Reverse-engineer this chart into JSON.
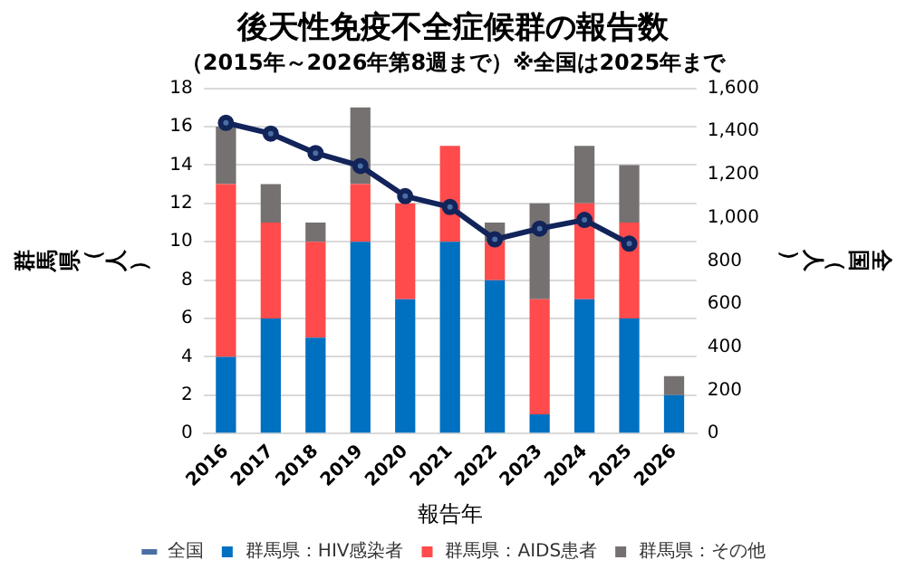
{
  "chart_data": {
    "type": "bar",
    "title": "後天性免疫不全症候群の報告数",
    "subtitle": "（2015年～2026年第8週まで）※全国は2025年まで",
    "xlabel": "報告年",
    "ylabel": "群馬県（人）",
    "y2label": "全国（人）",
    "categories": [
      "2016",
      "2017",
      "2018",
      "2019",
      "2020",
      "2021",
      "2022",
      "2023",
      "2024",
      "2025",
      "2026"
    ],
    "stacked": true,
    "series": [
      {
        "name": "群馬県：HIV感染者",
        "color": "#0070c0",
        "values": [
          4,
          6,
          5,
          10,
          7,
          10,
          8,
          1,
          7,
          6,
          2
        ]
      },
      {
        "name": "群馬県：AIDS患者",
        "color": "#ff4b4b",
        "values": [
          9,
          5,
          5,
          3,
          5,
          5,
          2,
          6,
          5,
          5,
          0
        ]
      },
      {
        "name": "群馬県：その他",
        "color": "#767171",
        "values": [
          3,
          2,
          1,
          4,
          0,
          0,
          1,
          5,
          3,
          3,
          1
        ]
      },
      {
        "name": "全国",
        "type": "line",
        "axis": "y2",
        "color": "#12245a",
        "marker": "circle",
        "values": [
          1440,
          1390,
          1300,
          1240,
          1100,
          1050,
          900,
          950,
          990,
          880,
          null
        ]
      }
    ],
    "ylim": [
      0,
      18
    ],
    "yticks": [
      0,
      2,
      4,
      6,
      8,
      10,
      12,
      14,
      16,
      18
    ],
    "y2lim": [
      0,
      1600
    ],
    "y2ticks": [
      {
        "value": 0,
        "label": "0"
      },
      {
        "value": 200,
        "label": "200"
      },
      {
        "value": 400,
        "label": "400"
      },
      {
        "value": 600,
        "label": "600"
      },
      {
        "value": 800,
        "label": "800"
      },
      {
        "value": 1000,
        "label": "1,000"
      },
      {
        "value": 1200,
        "label": "1,200"
      },
      {
        "value": 1400,
        "label": "1,400"
      },
      {
        "value": 1600,
        "label": "1,600"
      }
    ],
    "grid": "y",
    "legend": "bottom"
  }
}
